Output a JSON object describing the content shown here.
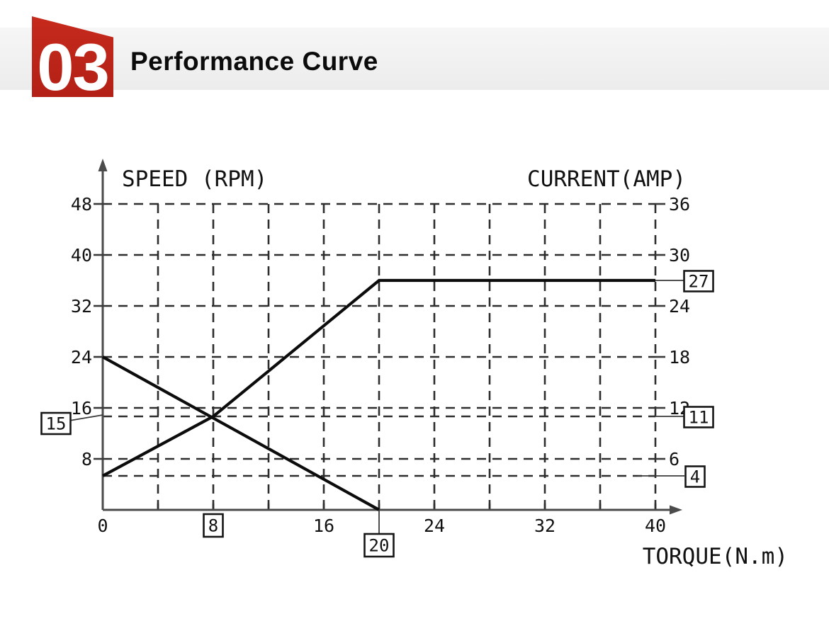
{
  "header": {
    "section_number": "03",
    "title": "Performance Curve",
    "badge_color": "#bc2418",
    "bar_color": "#efefef"
  },
  "chart_data": {
    "type": "line",
    "left_axis": {
      "label": "SPEED (RPM)",
      "ticks": [
        8,
        16,
        24,
        32,
        40,
        48
      ],
      "range": [
        0,
        48
      ]
    },
    "right_axis": {
      "label": "CURRENT(AMP)",
      "ticks": [
        6,
        12,
        18,
        24,
        30,
        36
      ],
      "range": [
        0,
        36
      ]
    },
    "x_axis": {
      "label": "TORQUE(N.m)",
      "ticks": [
        0,
        8,
        16,
        24,
        32,
        40
      ],
      "range": [
        0,
        40
      ],
      "grid_step": 4
    },
    "grid": {
      "style": "dashed",
      "horizontal_step_rpm": 8,
      "extra_horizontal_amp": [
        11,
        4
      ]
    },
    "series": [
      {
        "name": "speed",
        "axis": "left",
        "units": "RPM",
        "points": [
          [
            0,
            24
          ],
          [
            20,
            0
          ]
        ]
      },
      {
        "name": "current",
        "axis": "right",
        "units": "AMP",
        "points": [
          [
            0,
            4
          ],
          [
            8,
            11
          ],
          [
            20,
            27
          ],
          [
            40,
            27
          ]
        ]
      }
    ],
    "callouts": [
      {
        "label": "15",
        "axis": "left",
        "value": 15,
        "side": "left"
      },
      {
        "label": "27",
        "axis": "right",
        "value": 27,
        "side": "right"
      },
      {
        "label": "11",
        "axis": "right",
        "value": 11,
        "side": "right"
      },
      {
        "label": "4",
        "axis": "right",
        "value": 4,
        "side": "right"
      },
      {
        "label": "8",
        "axis": "x",
        "value": 8,
        "side": "bottom"
      },
      {
        "label": "20",
        "axis": "x",
        "value": 20,
        "side": "bottom-leader"
      }
    ]
  }
}
